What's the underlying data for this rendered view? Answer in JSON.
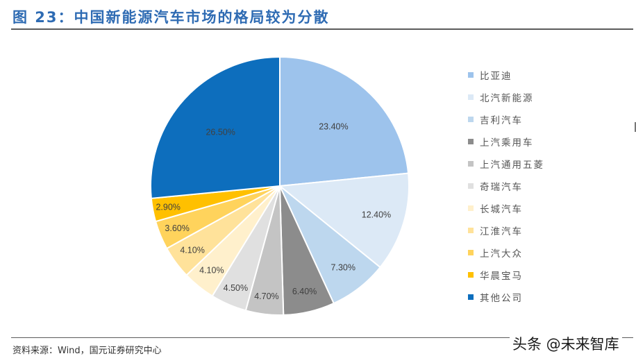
{
  "header": {
    "title": "图 23：中国新能源汽车市场的格局较为分散"
  },
  "footer": {
    "source": "资料来源：Wind，国元证券研究中心",
    "watermark": "头条 @未来智库"
  },
  "chart_data": {
    "type": "pie",
    "title": "中国新能源汽车市场的格局较为分散",
    "start_angle": "12 o'clock, clockwise",
    "categories": [
      "比亚迪",
      "北汽新能源",
      "吉利汽车",
      "上汽乘用车",
      "上汽通用五菱",
      "奇瑞汽车",
      "长城汽车",
      "江淮汽车",
      "上汽大众",
      "华晨宝马",
      "其他公司"
    ],
    "values": [
      23.4,
      12.4,
      7.3,
      6.4,
      4.7,
      4.5,
      4.1,
      4.1,
      3.6,
      2.9,
      26.5
    ],
    "labels": [
      "23.40%",
      "12.40%",
      "7.30%",
      "6.40%",
      "4.70%",
      "4.50%",
      "4.10%",
      "4.10%",
      "3.60%",
      "2.90%",
      "26.50%"
    ],
    "colors": [
      "#9dc3ec",
      "#dce9f6",
      "#bdd7ee",
      "#8c8c8c",
      "#c4c4c4",
      "#e0e0e0",
      "#fff0cc",
      "#ffe29a",
      "#ffd35c",
      "#ffc000",
      "#0d6ebd"
    ],
    "legend_position": "right",
    "unit": "%"
  },
  "legend": {
    "items": [
      {
        "label": "比亚迪",
        "color": "#9dc3ec"
      },
      {
        "label": "北汽新能源",
        "color": "#dce9f6"
      },
      {
        "label": "吉利汽车",
        "color": "#bdd7ee"
      },
      {
        "label": "上汽乘用车",
        "color": "#8c8c8c"
      },
      {
        "label": "上汽通用五菱",
        "color": "#c4c4c4"
      },
      {
        "label": "奇瑞汽车",
        "color": "#e0e0e0"
      },
      {
        "label": "长城汽车",
        "color": "#fff0cc"
      },
      {
        "label": "江淮汽车",
        "color": "#ffe29a"
      },
      {
        "label": "上汽大众",
        "color": "#ffd35c"
      },
      {
        "label": "华晨宝马",
        "color": "#ffc000"
      },
      {
        "label": "其他公司",
        "color": "#0d6ebd"
      }
    ]
  }
}
